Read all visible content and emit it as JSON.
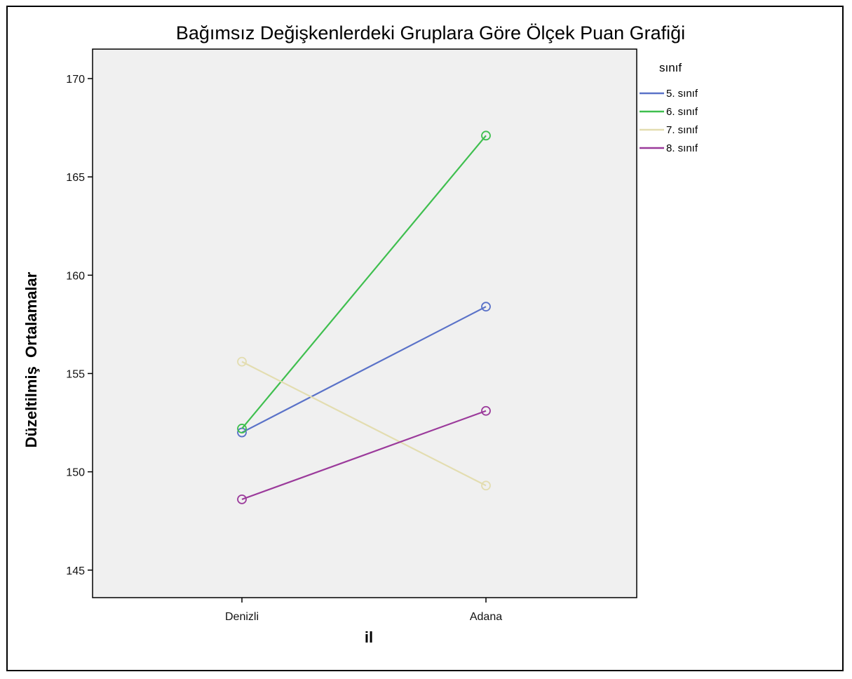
{
  "chart_data": {
    "type": "line",
    "title": "Bağımsız Değişkenlerdeki Gruplara Göre Ölçek Puan Grafiği",
    "xlabel": "il",
    "ylabel": "Düzeltilmiş  Ortalamalar",
    "categories": [
      "Denizli",
      "Adana"
    ],
    "ylim": [
      143.6,
      171.5
    ],
    "yticks": [
      145,
      150,
      155,
      160,
      165,
      170
    ],
    "grid": false,
    "legend_title": "sınıf",
    "legend_position": "top-right",
    "series": [
      {
        "name": "5. sınıf",
        "values": [
          152.0,
          158.4
        ],
        "color": "#5a72c8"
      },
      {
        "name": "6. sınıf",
        "values": [
          152.2,
          167.1
        ],
        "color": "#3fbf4f"
      },
      {
        "name": "7. sınıf",
        "values": [
          155.6,
          149.3
        ],
        "color": "#e3ddb0"
      },
      {
        "name": "8. sınıf",
        "values": [
          148.6,
          153.1
        ],
        "color": "#9b3a9b"
      }
    ]
  },
  "colors": {
    "plot_background": "#f0f0f0",
    "axis": "#000000"
  }
}
